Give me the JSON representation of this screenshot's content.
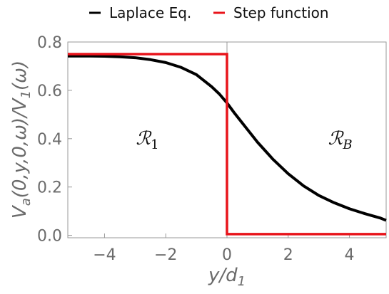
{
  "chart_data": {
    "type": "line",
    "xlabel": "y/d₁",
    "ylabel": "Vₐ(0,y,0,ω)/V₁(ω)",
    "xlim": [
      -5.2,
      5.2
    ],
    "ylim": [
      -0.01,
      0.8
    ],
    "xticks": [
      -4,
      -2,
      0,
      2,
      4
    ],
    "xtick_labels": [
      "−4",
      "−2",
      "0",
      "2",
      "4"
    ],
    "yticks": [
      0.0,
      0.2,
      0.4,
      0.6,
      0.8
    ],
    "ytick_labels": [
      "0.0",
      "0.2",
      "0.4",
      "0.6",
      "0.8"
    ],
    "grid": false,
    "legend_position": "top",
    "legend": [
      "Laplace Eq.",
      "Step function"
    ],
    "annotations": [
      {
        "text": "ℛ₁",
        "x": -2.6,
        "y": 0.4
      },
      {
        "text": "ℛ_B",
        "x": 3.7,
        "y": 0.4
      }
    ],
    "series": [
      {
        "name": "Laplace Eq.",
        "color": "#000000",
        "x": [
          -5.2,
          -4.5,
          -4,
          -3.5,
          -3,
          -2.5,
          -2,
          -1.5,
          -1,
          -0.5,
          -0.25,
          0,
          0.25,
          0.5,
          0.75,
          1,
          1.5,
          2,
          2.5,
          3,
          3.5,
          4,
          4.5,
          5,
          5.2
        ],
        "y": [
          0.742,
          0.742,
          0.741,
          0.739,
          0.735,
          0.727,
          0.715,
          0.695,
          0.665,
          0.615,
          0.585,
          0.548,
          0.505,
          0.465,
          0.425,
          0.385,
          0.315,
          0.255,
          0.205,
          0.165,
          0.135,
          0.11,
          0.09,
          0.072,
          0.062
        ]
      },
      {
        "name": "Step function",
        "color": "#e8141b",
        "x": [
          -5.2,
          0,
          0,
          5.2
        ],
        "y": [
          0.75,
          0.75,
          0.005,
          0.005
        ]
      }
    ]
  }
}
